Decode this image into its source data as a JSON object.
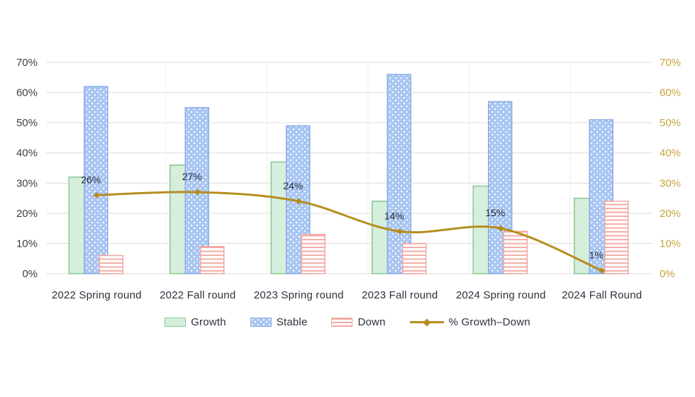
{
  "chart_data": {
    "type": "combo (bar + line)",
    "categories": [
      "2022 Spring round",
      "2022 Fall round",
      "2023 Spring round",
      "2023 Fall round",
      "2024 Spring round",
      "2024 Fall Round"
    ],
    "series": [
      {
        "type": "bar",
        "name": "Growth",
        "values": [
          32,
          36,
          37,
          24,
          29,
          25
        ]
      },
      {
        "type": "bar",
        "name": "Stable",
        "values": [
          62,
          55,
          49,
          66,
          57,
          51
        ]
      },
      {
        "type": "bar",
        "name": "Down",
        "values": [
          6,
          9,
          13,
          10,
          14,
          24
        ]
      },
      {
        "type": "line",
        "name": "% Growth–Down",
        "values": [
          26,
          27,
          24,
          14,
          15,
          1
        ],
        "point_labels": [
          "26%",
          "27%",
          "24%",
          "14%",
          "15%",
          "1%"
        ]
      }
    ],
    "axes": {
      "y_left": {
        "min": 0,
        "max": 70,
        "step": 10,
        "suffix": "%",
        "ticks": [
          "0%",
          "10%",
          "20%",
          "30%",
          "40%",
          "50%",
          "60%",
          "70%"
        ]
      },
      "y_right": {
        "min": 0,
        "max": 70,
        "step": 10,
        "suffix": "%",
        "ticks": [
          "0%",
          "10%",
          "20%",
          "30%",
          "40%",
          "50%",
          "60%",
          "70%"
        ]
      }
    },
    "legend_position": "bottom",
    "grid": "horizontal",
    "colors": {
      "growth_fill": "#d6eedc",
      "growth_border": "#86c891",
      "stable_fill": "#aac6f2",
      "stable_border": "#8cace6",
      "stable_dot": "#ffffff",
      "down_fill": "#ffffff",
      "down_border": "#efa7a1",
      "down_stripe": "#f3aaa3",
      "line": "#b68e1e",
      "left_axis_text": "#3c3e42",
      "right_axis_text": "#c5a43c",
      "category_text": "#2d303e",
      "point_label_text": "#252e3d",
      "gridline": "#dcdcdc",
      "vline": "#f0f0f0",
      "background": "#ffffff"
    }
  }
}
